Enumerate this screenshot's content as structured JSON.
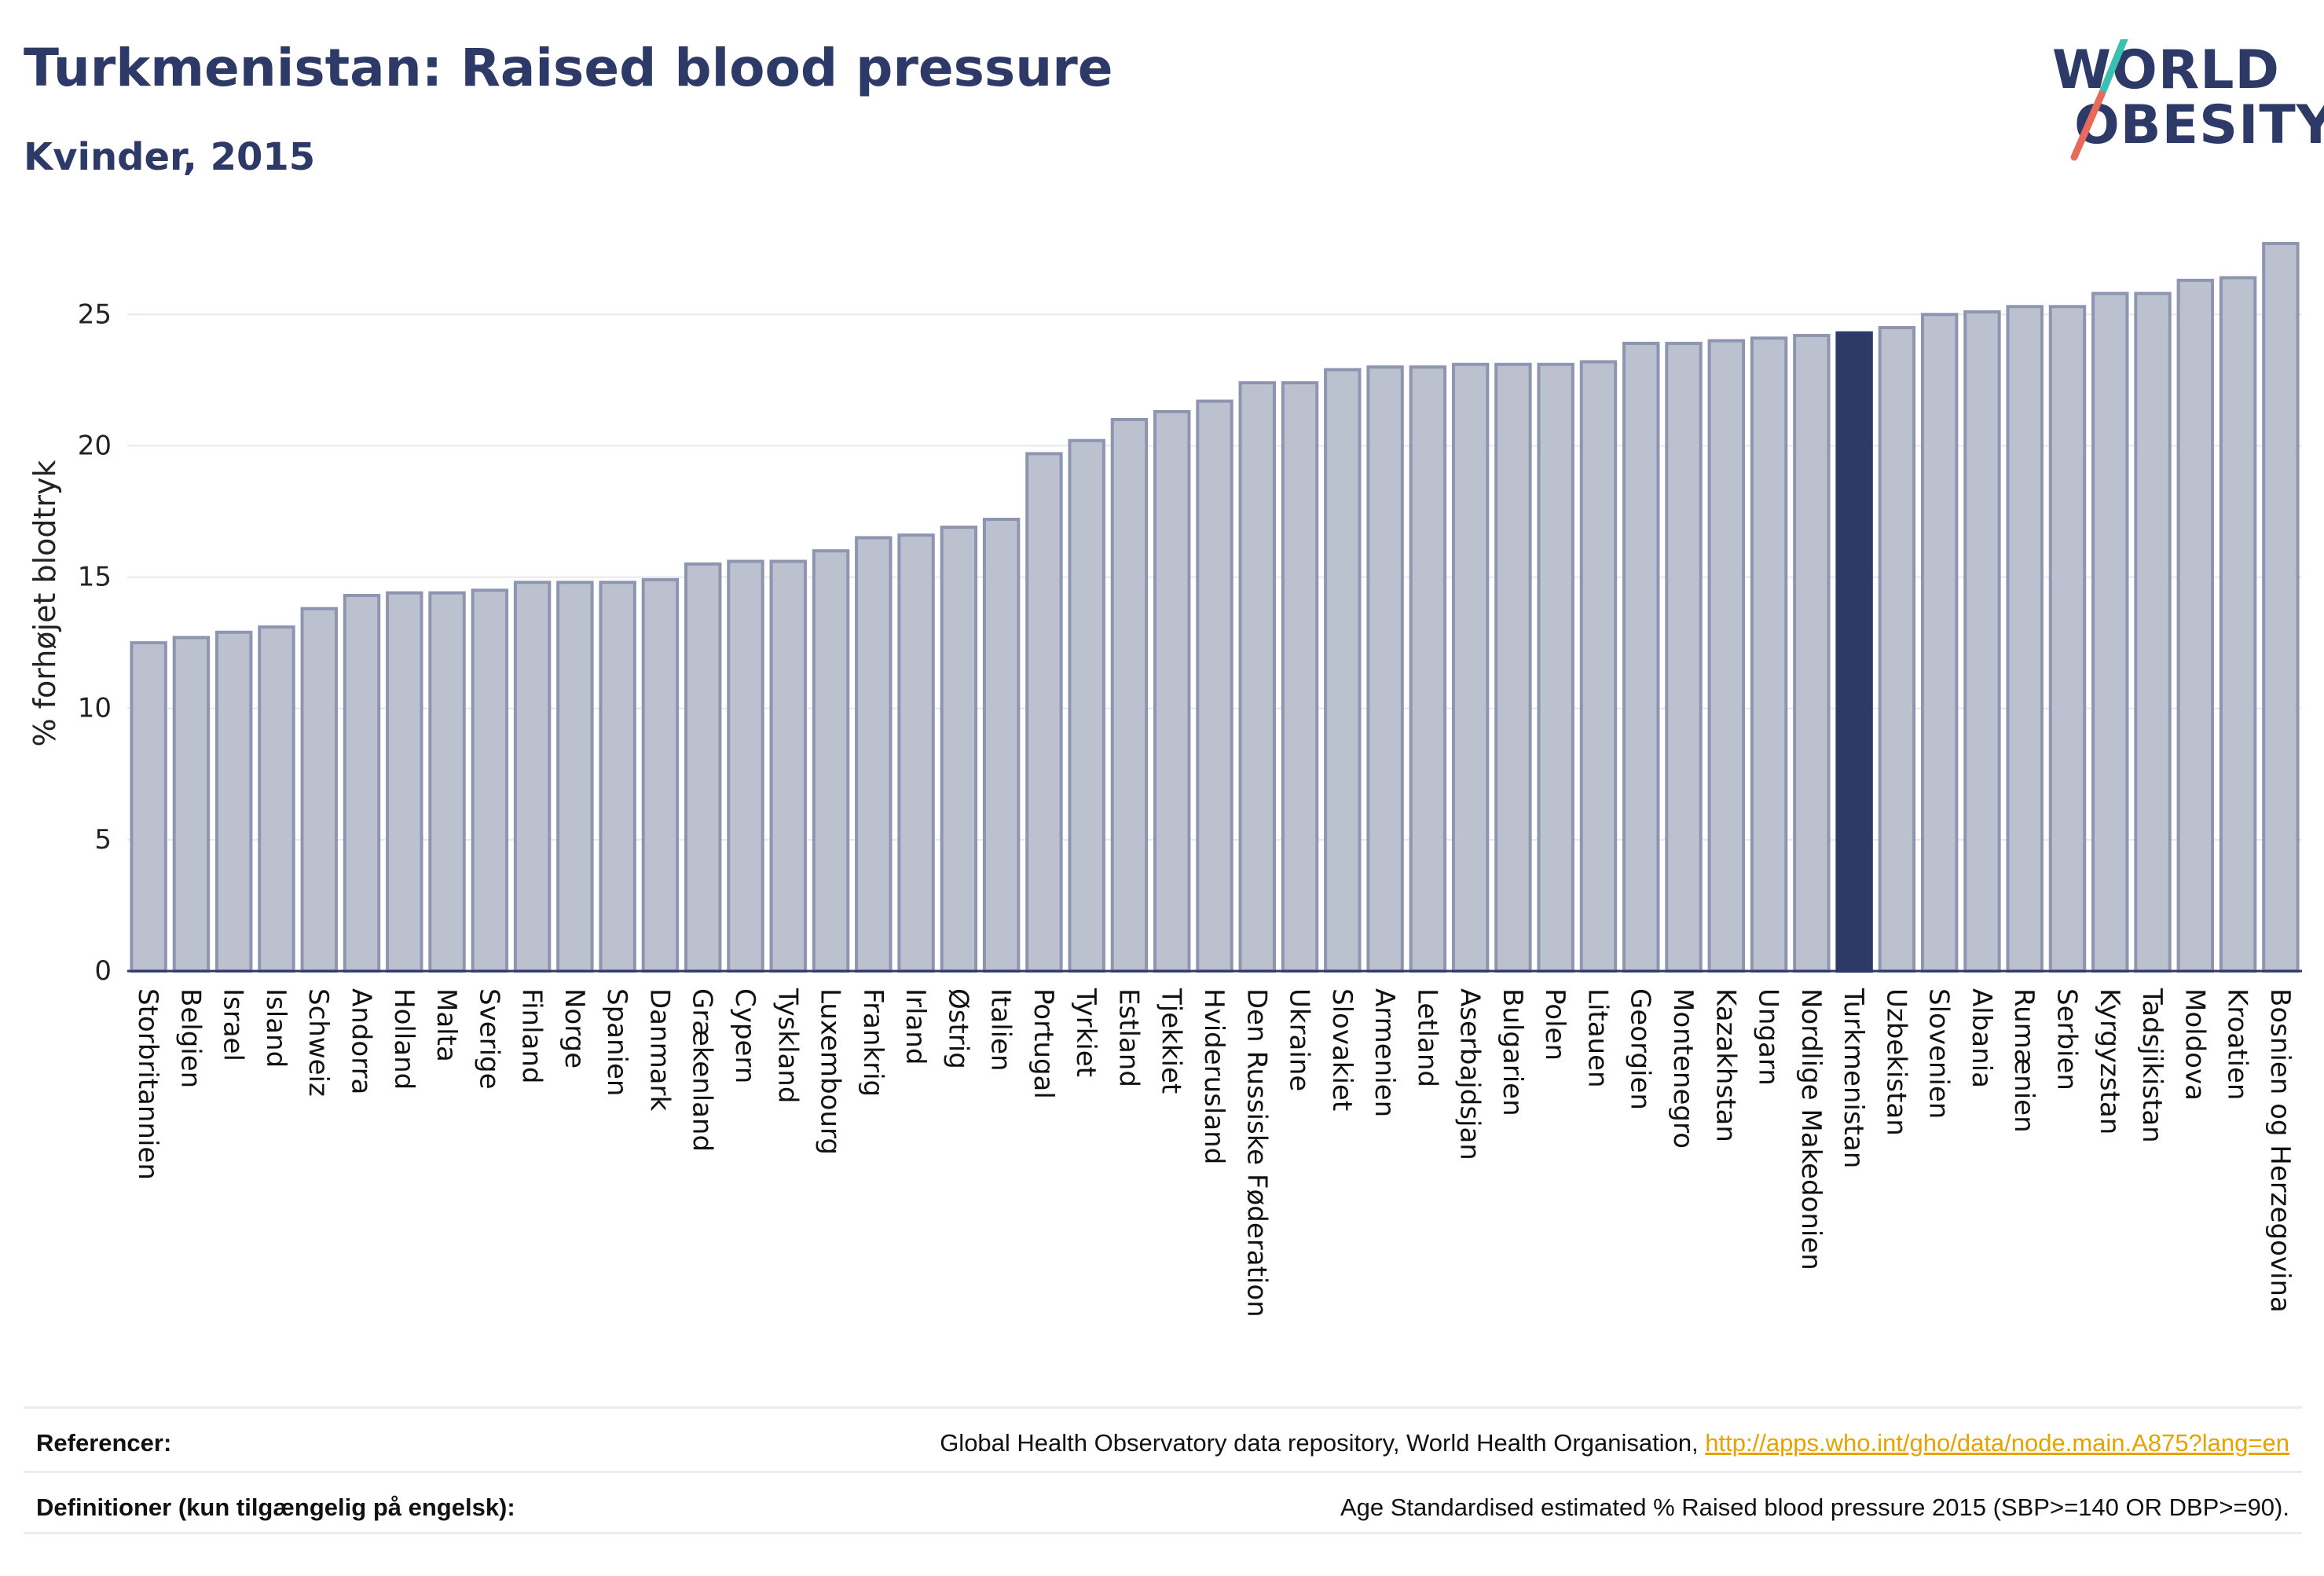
{
  "header": {
    "title": "Turkmenistan: Raised blood pressure",
    "subtitle": "Kvinder, 2015"
  },
  "logo": {
    "line1": "WORLD",
    "line2": "OBESITY"
  },
  "footer": {
    "ref_label": "Referencer:",
    "ref_text": "Global Health Observatory data repository, World Health Organisation, ",
    "ref_link": "http://apps.who.int/gho/data/node.main.A875?lang=en",
    "def_label": "Definitioner (kun tilgængelig på engelsk):",
    "def_text": "Age Standardised estimated % Raised blood pressure 2015 (SBP>=140 OR DBP>=90)."
  },
  "colors": {
    "bar_fill": "#bcc1d0",
    "bar_stroke": "#8e95b0",
    "highlight": "#2d3a67",
    "grid": "#e6e8ef",
    "axis": "#2d3a67",
    "logo_slash_top": "#3bbfb1",
    "logo_slash_bottom": "#e86a5a"
  },
  "chart_data": {
    "type": "bar",
    "ylabel": "% forhøjet blodtryk",
    "ylim": [
      0,
      28
    ],
    "yticks": [
      0,
      5,
      10,
      15,
      20,
      25
    ],
    "grid": true,
    "highlight": "Turkmenistan",
    "categories": [
      "Storbritannien",
      "Belgien",
      "Israel",
      "Island",
      "Schweiz",
      "Andorra",
      "Holland",
      "Malta",
      "Sverige",
      "Finland",
      "Norge",
      "Spanien",
      "Danmark",
      "Grækenland",
      "Cypern",
      "Tyskland",
      "Luxembourg",
      "Frankrig",
      "Irland",
      "Østrig",
      "Italien",
      "Portugal",
      "Tyrkiet",
      "Estland",
      "Tjekkiet",
      "Hviderusland",
      "Den Russiske Føderation",
      "Ukraine",
      "Slovakiet",
      "Armenien",
      "Letland",
      "Aserbajdsjan",
      "Bulgarien",
      "Polen",
      "Litauen",
      "Georgien",
      "Montenegro",
      "Kazakhstan",
      "Ungarn",
      "Nordlige Makedonien",
      "Turkmenistan",
      "Uzbekistan",
      "Slovenien",
      "Albania",
      "Rumænien",
      "Serbien",
      "Kyrgyzstan",
      "Tadsjikistan",
      "Moldova",
      "Kroatien",
      "Bosnien og Herzegovina"
    ],
    "values": [
      12.5,
      12.7,
      12.9,
      13.1,
      13.8,
      14.3,
      14.4,
      14.4,
      14.5,
      14.8,
      14.8,
      14.8,
      14.9,
      15.5,
      15.6,
      15.6,
      16.0,
      16.5,
      16.6,
      16.9,
      17.2,
      19.7,
      20.2,
      21.0,
      21.3,
      21.7,
      22.4,
      22.4,
      22.9,
      23.0,
      23.0,
      23.1,
      23.1,
      23.1,
      23.2,
      23.9,
      23.9,
      24.0,
      24.1,
      24.2,
      24.3,
      24.5,
      25.0,
      25.1,
      25.3,
      25.3,
      25.8,
      25.8,
      26.3,
      26.4,
      27.7
    ]
  }
}
